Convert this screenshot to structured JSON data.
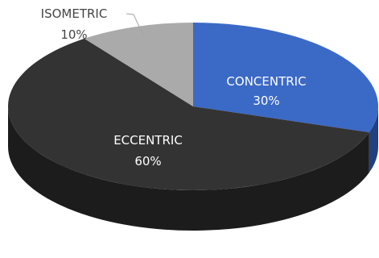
{
  "chart_data": {
    "type": "pie",
    "variant": "3d",
    "title": "",
    "slices": [
      {
        "label": "CONCENTRIC",
        "value": 30,
        "value_label": "30%",
        "color": "#3b69c6"
      },
      {
        "label": "ECCENTRIC",
        "value": 60,
        "value_label": "60%",
        "color": "#333333"
      },
      {
        "label": "ISOMETRIC",
        "value": 10,
        "value_label": "10%",
        "color": "#aaaaaa"
      }
    ],
    "legend": "none",
    "label_colors": {
      "inside": "#ffffff",
      "outside": "#444444"
    },
    "side_colors": [
      "#21407f",
      "#1c1c1c",
      "#6a6a6a"
    ]
  }
}
